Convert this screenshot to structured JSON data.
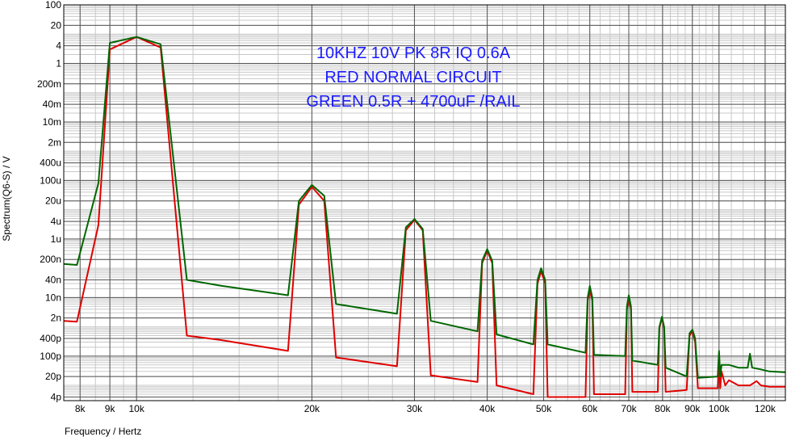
{
  "chart_data": {
    "type": "line",
    "xlabel": "Frequency / Hertz",
    "ylabel": "Spectrum(Q6-S) / V",
    "xscale": "log",
    "yscale": "log",
    "xlim": [
      7500,
      130000
    ],
    "ylim": [
      3e-12,
      100
    ],
    "grid": true,
    "x_ticks": [
      {
        "value": 8000,
        "label": "8k"
      },
      {
        "value": 9000,
        "label": "9k"
      },
      {
        "value": 10000,
        "label": "10k"
      },
      {
        "value": 20000,
        "label": "20k"
      },
      {
        "value": 30000,
        "label": "30k"
      },
      {
        "value": 40000,
        "label": "40k"
      },
      {
        "value": 50000,
        "label": "50k"
      },
      {
        "value": 60000,
        "label": "60k"
      },
      {
        "value": 70000,
        "label": "70k"
      },
      {
        "value": 80000,
        "label": "80k"
      },
      {
        "value": 90000,
        "label": "90k"
      },
      {
        "value": 100000,
        "label": "100k"
      },
      {
        "value": 120000,
        "label": "120k"
      }
    ],
    "y_ticks": [
      {
        "value": 100,
        "label": "100"
      },
      {
        "value": 20,
        "label": "20"
      },
      {
        "value": 4,
        "label": "4"
      },
      {
        "value": 1,
        "label": "1"
      },
      {
        "value": 0.2,
        "label": "200m"
      },
      {
        "value": 0.04,
        "label": "40m"
      },
      {
        "value": 0.01,
        "label": "10m"
      },
      {
        "value": 0.002,
        "label": "2m"
      },
      {
        "value": 0.0004,
        "label": "400u"
      },
      {
        "value": 0.0001,
        "label": "100u"
      },
      {
        "value": 2e-05,
        "label": "20u"
      },
      {
        "value": 4e-06,
        "label": "4u"
      },
      {
        "value": 1e-06,
        "label": "1u"
      },
      {
        "value": 2e-07,
        "label": "200n"
      },
      {
        "value": 4e-08,
        "label": "40n"
      },
      {
        "value": 1e-08,
        "label": "10n"
      },
      {
        "value": 2e-09,
        "label": "2n"
      },
      {
        "value": 4e-10,
        "label": "400p"
      },
      {
        "value": 1e-10,
        "label": "100p"
      },
      {
        "value": 2e-11,
        "label": "20p"
      },
      {
        "value": 4e-12,
        "label": "4p"
      }
    ],
    "annotations": [
      "10KHZ  10V PK 8R IQ 0.6A",
      "RED     NORMAL CIRCUIT",
      "GREEN 0.5R + 4700uF /RAIL"
    ],
    "series": [
      {
        "color": "#e00000",
        "points": [
          [
            7500,
            1.6e-09
          ],
          [
            7900,
            1.5e-09
          ],
          [
            8600,
            3e-06
          ],
          [
            9000,
            3
          ],
          [
            10000,
            8
          ],
          [
            11000,
            3.5
          ],
          [
            12200,
            5e-10
          ],
          [
            14000,
            3.5e-10
          ],
          [
            18200,
            1.5e-10
          ],
          [
            19000,
            1.5e-05
          ],
          [
            20000,
            6e-05
          ],
          [
            21000,
            2e-05
          ],
          [
            22000,
            9e-11
          ],
          [
            28000,
            4.5e-11
          ],
          [
            29000,
            2e-06
          ],
          [
            30000,
            4.5e-06
          ],
          [
            31000,
            2e-06
          ],
          [
            32000,
            2.2e-11
          ],
          [
            38500,
            1.3e-11
          ],
          [
            39200,
            1.5e-07
          ],
          [
            40000,
            4e-07
          ],
          [
            40800,
            1.5e-07
          ],
          [
            41500,
            1e-11
          ],
          [
            48000,
            5e-12
          ],
          [
            48800,
            3e-08
          ],
          [
            49500,
            8e-08
          ],
          [
            50300,
            3e-08
          ],
          [
            50800,
            4e-12
          ],
          [
            59000,
            4e-12
          ],
          [
            59500,
            8e-09
          ],
          [
            60000,
            1.8e-08
          ],
          [
            60600,
            8e-09
          ],
          [
            61000,
            5e-12
          ],
          [
            69000,
            5e-12
          ],
          [
            69500,
            4e-09
          ],
          [
            70000,
            9e-09
          ],
          [
            70600,
            4e-09
          ],
          [
            71000,
            6e-12
          ],
          [
            78500,
            6e-12
          ],
          [
            79000,
            9e-10
          ],
          [
            79800,
            2e-09
          ],
          [
            80500,
            9e-10
          ],
          [
            81000,
            6e-12
          ],
          [
            88000,
            7e-12
          ],
          [
            89000,
            5e-10
          ],
          [
            90000,
            7e-10
          ],
          [
            91000,
            3e-10
          ],
          [
            92000,
            8e-12
          ],
          [
            99500,
            8e-12
          ],
          [
            100000,
            1.2e-10
          ],
          [
            100500,
            8e-12
          ],
          [
            101000,
            3e-11
          ],
          [
            102500,
            1e-11
          ],
          [
            104000,
            1.5e-11
          ],
          [
            108000,
            1e-11
          ],
          [
            112000,
            1e-11
          ],
          [
            113000,
            1e-11
          ],
          [
            116000,
            1.4e-11
          ],
          [
            118000,
            1e-11
          ],
          [
            122000,
            9e-12
          ],
          [
            130000,
            9e-12
          ]
        ]
      },
      {
        "color": "#006600",
        "points": [
          [
            7500,
            1.4e-07
          ],
          [
            7900,
            1.3e-07
          ],
          [
            8600,
            8e-05
          ],
          [
            9000,
            5
          ],
          [
            10000,
            8
          ],
          [
            11000,
            4.5
          ],
          [
            12200,
            4e-08
          ],
          [
            14000,
            2.5e-08
          ],
          [
            18200,
            1.2e-08
          ],
          [
            19000,
            2e-05
          ],
          [
            20000,
            7e-05
          ],
          [
            21000,
            3e-05
          ],
          [
            22000,
            6e-09
          ],
          [
            28000,
            2.8e-09
          ],
          [
            29000,
            2.5e-06
          ],
          [
            30000,
            4.8e-06
          ],
          [
            31000,
            2.2e-06
          ],
          [
            32000,
            1.6e-09
          ],
          [
            38500,
            7e-10
          ],
          [
            39200,
            1.8e-07
          ],
          [
            40000,
            4.5e-07
          ],
          [
            40800,
            1.8e-07
          ],
          [
            41500,
            5.5e-10
          ],
          [
            48000,
            2.5e-10
          ],
          [
            48800,
            4e-08
          ],
          [
            49500,
            1e-07
          ],
          [
            50300,
            4e-08
          ],
          [
            50800,
            2.5e-10
          ],
          [
            59000,
            1.3e-10
          ],
          [
            59500,
            1e-08
          ],
          [
            60000,
            2.5e-08
          ],
          [
            60600,
            1e-08
          ],
          [
            61000,
            1.1e-10
          ],
          [
            69000,
            1e-10
          ],
          [
            69500,
            5e-09
          ],
          [
            70000,
            1.2e-08
          ],
          [
            70600,
            5e-09
          ],
          [
            71000,
            7e-11
          ],
          [
            78500,
            5e-11
          ],
          [
            79000,
            1e-09
          ],
          [
            79800,
            2.2e-09
          ],
          [
            80500,
            1e-09
          ],
          [
            81000,
            4e-11
          ],
          [
            88000,
            2e-11
          ],
          [
            89000,
            6e-10
          ],
          [
            90000,
            8e-10
          ],
          [
            91000,
            4e-10
          ],
          [
            92000,
            1.8e-11
          ],
          [
            99500,
            2e-11
          ],
          [
            100000,
            1.5e-10
          ],
          [
            100500,
            2e-11
          ],
          [
            101000,
            5e-11
          ],
          [
            102500,
            5e-11
          ],
          [
            104000,
            5e-11
          ],
          [
            108000,
            4e-11
          ],
          [
            112000,
            4e-11
          ],
          [
            113000,
            1.2e-10
          ],
          [
            114000,
            4e-11
          ],
          [
            118000,
            3.5e-11
          ],
          [
            122000,
            3e-11
          ],
          [
            130000,
            2.8e-11
          ]
        ]
      }
    ]
  }
}
